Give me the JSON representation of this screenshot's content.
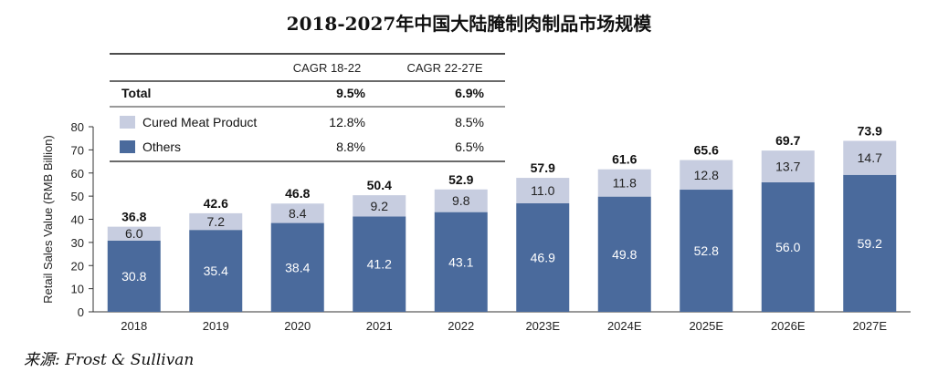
{
  "title": "2018-2027年中国大陆腌制肉制品市场规模",
  "source": "来源: Frost & Sullivan",
  "cagr_table": {
    "headers": [
      "",
      "CAGR 18-22",
      "CAGR 22-27E"
    ],
    "rows": [
      {
        "label": "Total",
        "c1": "9.5%",
        "c2": "6.9%",
        "bold": true
      },
      {
        "label": "Cured Meat Product",
        "c1": "12.8%",
        "c2": "8.5%",
        "swatch": "#c7cde0"
      },
      {
        "label": "Others",
        "c1": "8.8%",
        "c2": "6.5%",
        "swatch": "#4a6a9c"
      }
    ]
  },
  "chart_data": {
    "type": "bar",
    "stacked": true,
    "categories": [
      "2018",
      "2019",
      "2020",
      "2021",
      "2022",
      "2023E",
      "2024E",
      "2025E",
      "2026E",
      "2027E"
    ],
    "series": [
      {
        "name": "Others",
        "color": "#4a6a9c",
        "values": [
          30.8,
          35.4,
          38.4,
          41.2,
          43.1,
          46.9,
          49.8,
          52.8,
          56.0,
          59.2
        ],
        "labels": [
          "30.8",
          "35.4",
          "38.4",
          "41.2",
          "43.1",
          "46.9",
          "49.8",
          "52.8",
          "56.0",
          "59.2"
        ]
      },
      {
        "name": "Cured Meat Product",
        "color": "#c7cde0",
        "values": [
          6.0,
          7.2,
          8.4,
          9.2,
          9.8,
          11.0,
          11.8,
          12.8,
          13.7,
          14.7
        ],
        "labels": [
          "6.0",
          "7.2",
          "8.4",
          "9.2",
          "9.8",
          "11.0",
          "11.8",
          "12.8",
          "13.7",
          "14.7"
        ]
      }
    ],
    "totals": [
      36.8,
      42.6,
      46.8,
      50.4,
      52.9,
      57.9,
      61.6,
      65.6,
      69.7,
      73.9
    ],
    "total_labels": [
      "36.8",
      "42.6",
      "46.8",
      "50.4",
      "52.9",
      "57.9",
      "61.6",
      "65.6",
      "69.7",
      "73.9"
    ],
    "ylabel": "Retail Sales Value (RMB Billion)",
    "ylim": [
      0,
      80
    ],
    "yticks": [
      0,
      10,
      20,
      30,
      40,
      50,
      60,
      70,
      80
    ],
    "ytick_labels": [
      "0",
      "10",
      "20",
      "30",
      "40",
      "50",
      "60",
      "70",
      "80"
    ],
    "grid": false
  }
}
